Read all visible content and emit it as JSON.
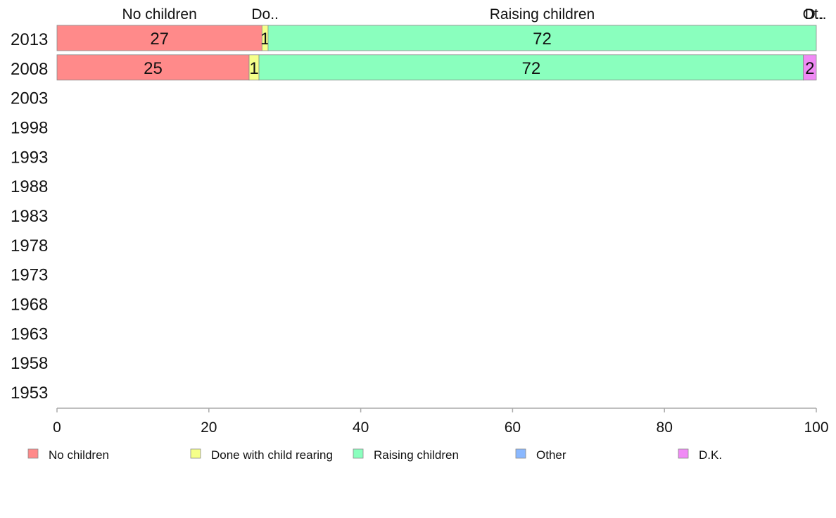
{
  "chart_data": {
    "type": "bar",
    "orientation": "horizontal",
    "stacked": true,
    "categories": [
      "2013",
      "2008",
      "2003",
      "1998",
      "1993",
      "1988",
      "1983",
      "1978",
      "1973",
      "1968",
      "1963",
      "1958",
      "1953"
    ],
    "series": [
      {
        "name": "No children",
        "color": "#ff8a8a",
        "values": [
          27,
          25.3,
          null,
          null,
          null,
          null,
          null,
          null,
          null,
          null,
          null,
          null,
          null
        ],
        "labels": [
          "27",
          "25",
          "",
          "",
          "",
          "",
          "",
          "",
          "",
          "",
          "",
          "",
          ""
        ]
      },
      {
        "name": "Done with child rearing",
        "color": "#f5ff8a",
        "values": [
          0.8,
          1.3,
          null,
          null,
          null,
          null,
          null,
          null,
          null,
          null,
          null,
          null,
          null
        ],
        "labels": [
          "1",
          "1",
          "",
          "",
          "",
          "",
          "",
          "",
          "",
          "",
          "",
          "",
          ""
        ]
      },
      {
        "name": "Raising children",
        "color": "#8affbe",
        "values": [
          72.2,
          71.7,
          null,
          null,
          null,
          null,
          null,
          null,
          null,
          null,
          null,
          null,
          null
        ],
        "labels": [
          "72",
          "72",
          "",
          "",
          "",
          "",
          "",
          "",
          "",
          "",
          "",
          "",
          ""
        ]
      },
      {
        "name": "Other",
        "color": "#8ab8ff",
        "values": [
          0,
          0,
          null,
          null,
          null,
          null,
          null,
          null,
          null,
          null,
          null,
          null,
          null
        ],
        "labels": [
          "",
          "",
          "",
          "",
          "",
          "",
          "",
          "",
          "",
          "",
          "",
          "",
          ""
        ]
      },
      {
        "name": "D.K.",
        "color": "#f08af5",
        "values": [
          0,
          1.7,
          null,
          null,
          null,
          null,
          null,
          null,
          null,
          null,
          null,
          null,
          null
        ],
        "labels": [
          "",
          "2",
          "",
          "",
          "",
          "",
          "",
          "",
          "",
          "",
          "",
          "",
          ""
        ]
      }
    ],
    "top_labels": [
      "No children",
      "Do..",
      "Raising children",
      "Ot..",
      "D.."
    ],
    "x_ticks": [
      "0",
      "20",
      "40",
      "60",
      "80",
      "100"
    ],
    "xlim": [
      0,
      100
    ],
    "title": "",
    "xlabel": "",
    "ylabel": "",
    "legend": "bottom",
    "grid": false
  }
}
